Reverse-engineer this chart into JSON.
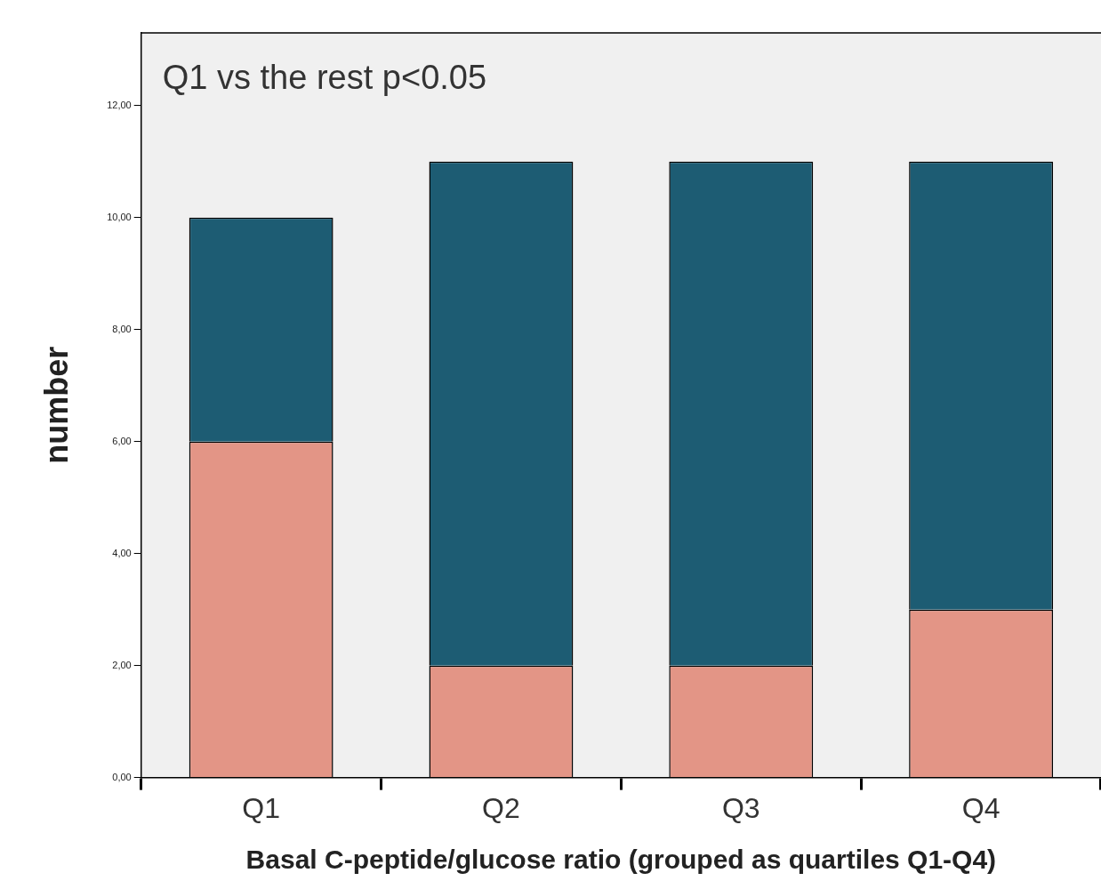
{
  "chart_data": {
    "type": "bar",
    "stacked": true,
    "ylabel": "number",
    "xlabel": "Basal C-peptide/glucose ratio (grouped as quartiles Q1-Q4)",
    "categories": [
      "Q1",
      "Q2",
      "Q3",
      "Q4"
    ],
    "series": [
      {
        "color": "#e39586",
        "values": [
          6,
          2,
          2,
          3
        ]
      },
      {
        "color": "#1d5c73",
        "values": [
          4,
          9,
          9,
          8
        ]
      }
    ],
    "ylim": [
      0,
      13.3
    ],
    "yticks": [
      {
        "value": 0,
        "label": "0,00"
      },
      {
        "value": 2,
        "label": "2,00"
      },
      {
        "value": 4,
        "label": "4,00"
      },
      {
        "value": 6,
        "label": "6,00"
      },
      {
        "value": 8,
        "label": "8,00"
      },
      {
        "value": 10,
        "label": "10,00"
      },
      {
        "value": 12,
        "label": "12,00"
      }
    ],
    "grid": false,
    "annotations": [
      "Q1 vs the rest p<0.05"
    ]
  }
}
